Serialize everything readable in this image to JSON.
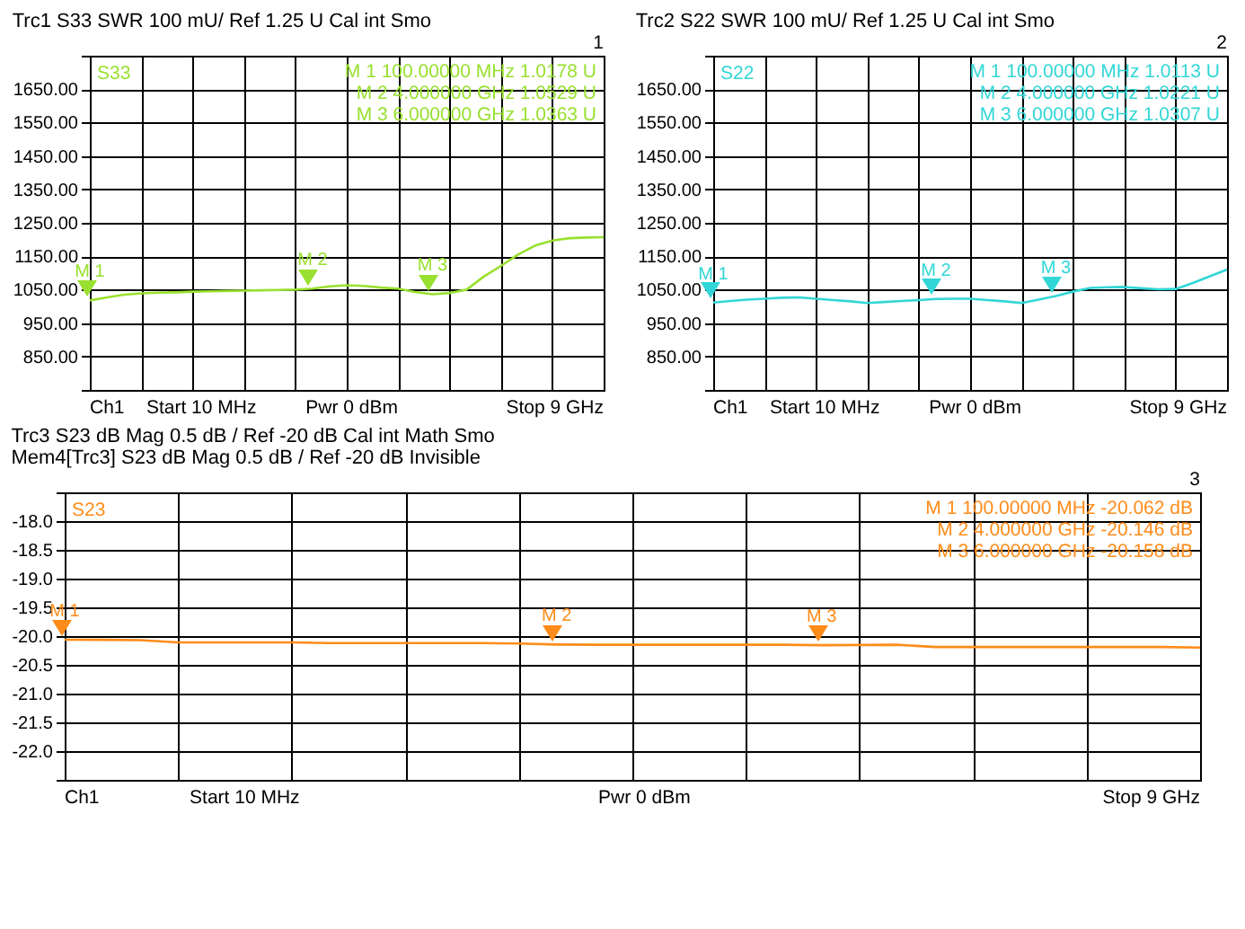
{
  "chart_data": [
    {
      "type": "line",
      "title": "Trc1  S33  SWR  100 mU/  Ref 1.25 U    Cal int Smo",
      "categories": [
        null,
        null,
        null,
        null,
        null,
        null,
        null,
        null,
        null,
        null,
        null,
        null,
        null,
        null,
        null,
        null,
        null,
        null,
        null,
        null,
        null,
        null,
        null,
        null,
        null,
        null,
        null,
        null,
        null,
        null,
        null
      ],
      "series": [
        {
          "color": "#99e030",
          "values": [
            1017.8,
            1027,
            1035,
            1039,
            1041,
            1042,
            1044,
            1045,
            1046,
            1047,
            1048,
            1049,
            1050,
            1052.9,
            1060,
            1063,
            1061,
            1056,
            1053,
            1043,
            1036.3,
            1040,
            1050,
            1089,
            1121,
            1155,
            1182,
            1197,
            1204,
            1206,
            1207
          ]
        }
      ],
      "ylim": [
        750,
        1750
      ],
      "yticks": [
        {
          "value": 750,
          "label": null
        },
        {
          "value": 850,
          "label": "850.00"
        },
        {
          "value": 950,
          "label": "950.00"
        },
        {
          "value": 1050,
          "label": "1050.00"
        },
        {
          "value": 1150,
          "label": "1150.00"
        },
        {
          "value": 1250,
          "label": "1250.00"
        },
        {
          "value": 1350,
          "label": "1350.00"
        },
        {
          "value": 1450,
          "label": "1450.00"
        },
        {
          "value": 1550,
          "label": "1550.00"
        },
        {
          "value": 1650,
          "label": "1650.00"
        },
        {
          "value": 1750,
          "label": null
        }
      ],
      "grid": true,
      "tick_labels": "y",
      "annotations": [
        "M 1   100.00000 MHz   1.0178  U",
        "M 2   4.000000 GHz   1.0529  U",
        "M 3   6.000000 GHz   1.0363  U",
        "S33",
        "Ch1",
        "Start  10 MHz",
        "Pwr  0 dBm",
        "Stop  9 GHz",
        "1",
        {
          "text": "M 1",
          "y": 1017.8
        },
        {
          "text": "M 2",
          "y": 1052.9
        },
        {
          "text": "M 3",
          "y": 1036.3
        }
      ]
    },
    {
      "type": "line",
      "title": "Trc2  S22  SWR  100 mU/  Ref 1.25 U    Cal int Smo",
      "categories": [
        null,
        null,
        null,
        null,
        null,
        null,
        null,
        null,
        null,
        null,
        null,
        null,
        null,
        null,
        null,
        null,
        null,
        null,
        null,
        null,
        null,
        null,
        null,
        null,
        null,
        null,
        null,
        null,
        null,
        null,
        null
      ],
      "series": [
        {
          "color": "#33d6d6",
          "values": [
            1011.3,
            1016,
            1020,
            1023,
            1026,
            1027,
            1023,
            1019,
            1015,
            1010,
            1013,
            1016,
            1019,
            1022.1,
            1023,
            1023,
            1019,
            1015,
            1010,
            1020,
            1030.7,
            1044,
            1055,
            1057,
            1058,
            1054,
            1051,
            1052,
            1070,
            1090,
            1110
          ]
        }
      ],
      "ylim": [
        750,
        1750
      ],
      "yticks": [
        {
          "value": 750,
          "label": null
        },
        {
          "value": 850,
          "label": "850.00"
        },
        {
          "value": 950,
          "label": "950.00"
        },
        {
          "value": 1050,
          "label": "1050.00"
        },
        {
          "value": 1150,
          "label": "1150.00"
        },
        {
          "value": 1250,
          "label": "1250.00"
        },
        {
          "value": 1350,
          "label": "1350.00"
        },
        {
          "value": 1450,
          "label": "1450.00"
        },
        {
          "value": 1550,
          "label": "1550.00"
        },
        {
          "value": 1650,
          "label": "1650.00"
        },
        {
          "value": 1750,
          "label": null
        }
      ],
      "grid": true,
      "tick_labels": "y",
      "annotations": [
        "M 1   100.00000 MHz   1.0113  U",
        "M 2   4.000000 GHz   1.0221  U",
        "M 3   6.000000 GHz   1.0307  U",
        "S22",
        "Ch1",
        "Start  10 MHz",
        "Pwr  0 dBm",
        "Stop  9 GHz",
        "2",
        {
          "text": "M 1",
          "y": 1011.3
        },
        {
          "text": "M 2",
          "y": 1022.1
        },
        {
          "text": "M 3",
          "y": 1030.7
        }
      ]
    },
    {
      "type": "line",
      "title": "Trc3  S23  dB Mag  0.5 dB /  Ref -20 dB    Cal int Math Smo",
      "subtitle": "Mem4[Trc3]  S23  dB Mag  0.5 dB /  Ref -20 dB    Invisible",
      "categories": [
        null,
        null,
        null,
        null,
        null,
        null,
        null,
        null,
        null,
        null,
        null,
        null,
        null,
        null,
        null,
        null,
        null,
        null,
        null,
        null,
        null,
        null,
        null,
        null,
        null,
        null,
        null,
        null,
        null,
        null,
        null
      ],
      "series": [
        {
          "color": "#ff8c1a",
          "values": [
            -20.062,
            -20.065,
            -20.07,
            -20.11,
            -20.11,
            -20.11,
            -20.11,
            -20.12,
            -20.12,
            -20.12,
            -20.12,
            -20.12,
            -20.13,
            -20.146,
            -20.15,
            -20.15,
            -20.15,
            -20.15,
            -20.15,
            -20.15,
            -20.158,
            -20.155,
            -20.15,
            -20.19,
            -20.19,
            -20.19,
            -20.19,
            -20.19,
            -20.19,
            -20.19,
            -20.2
          ]
        }
      ],
      "ylim": [
        -22.5,
        -17.5
      ],
      "yticks": [
        {
          "value": -22.5,
          "label": null
        },
        {
          "value": -22,
          "label": "-22.0"
        },
        {
          "value": -21.5,
          "label": "-21.5"
        },
        {
          "value": -21,
          "label": "-21.0"
        },
        {
          "value": -20.5,
          "label": "-20.5"
        },
        {
          "value": -20,
          "label": "-20.0"
        },
        {
          "value": -19.5,
          "label": "-19.5"
        },
        {
          "value": -19,
          "label": "-19.0"
        },
        {
          "value": -18.5,
          "label": "-18.5"
        },
        {
          "value": -18,
          "label": "-18.0"
        },
        {
          "value": -17.5,
          "label": null
        }
      ],
      "grid": true,
      "tick_labels": "y",
      "annotations": [
        "M 1   100.00000 MHz   -20.062 dB",
        "M 2   4.000000 GHz   -20.146 dB",
        "M 3   6.000000 GHz   -20.158 dB",
        "S23",
        "Ch1",
        "Start  10 MHz",
        "Pwr  0 dBm",
        "Stop  9 GHz",
        "3",
        {
          "text": "M 1",
          "y": -20.062
        },
        {
          "text": "M 2",
          "y": -20.146
        },
        {
          "text": "M 3",
          "y": -20.158
        }
      ]
    }
  ]
}
